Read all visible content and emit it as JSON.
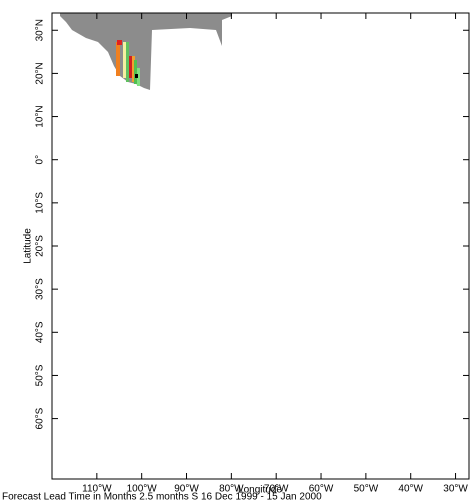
{
  "chart_data": {
    "type": "map",
    "xlabel": "Longitude",
    "ylabel": "Latitude",
    "caption": "Forecast Lead Time in Months 2.5 months S 16 Dec 1999 - 15 Jan 2000",
    "xlim": [
      -120,
      -27
    ],
    "ylim": [
      -74,
      34
    ],
    "xticks": [
      {
        "value": -110,
        "label": "110°W"
      },
      {
        "value": -100,
        "label": "100°W"
      },
      {
        "value": -90,
        "label": "90°W"
      },
      {
        "value": -80,
        "label": "80°W"
      },
      {
        "value": -70,
        "label": "70°W"
      },
      {
        "value": -60,
        "label": "60°W"
      },
      {
        "value": -50,
        "label": "50°W"
      },
      {
        "value": -40,
        "label": "40°W"
      },
      {
        "value": -30,
        "label": "30°W"
      }
    ],
    "yticks": [
      {
        "value": 30,
        "label": "30°N"
      },
      {
        "value": 20,
        "label": "20°N"
      },
      {
        "value": 10,
        "label": "10°N"
      },
      {
        "value": 0,
        "label": "0°"
      },
      {
        "value": -10,
        "label": "10°S"
      },
      {
        "value": -20,
        "label": "20°S"
      },
      {
        "value": -30,
        "label": "30°S"
      },
      {
        "value": -40,
        "label": "40°S"
      },
      {
        "value": -50,
        "label": "50°S"
      },
      {
        "value": -60,
        "label": "60°S"
      }
    ]
  }
}
